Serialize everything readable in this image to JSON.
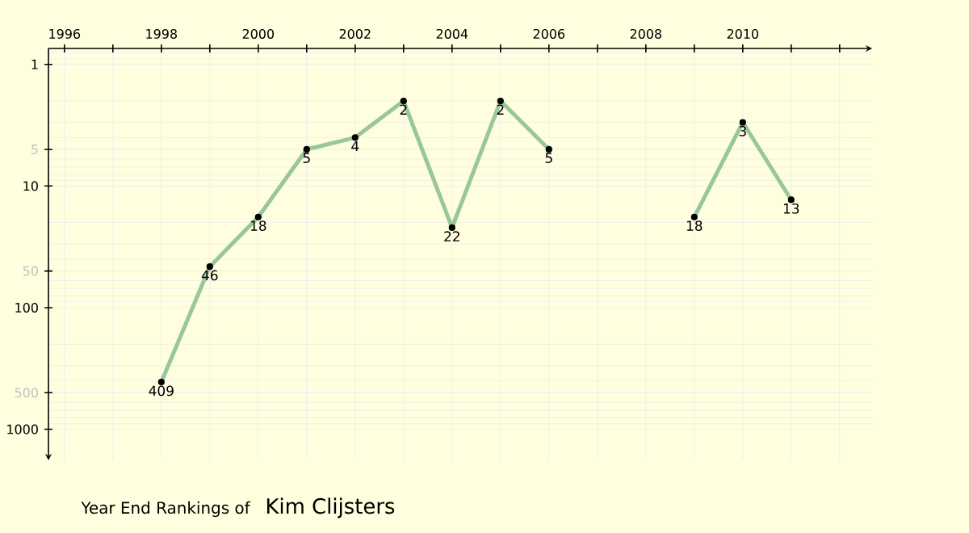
{
  "chart_data": {
    "type": "line",
    "title": "Year End Rankings of",
    "subtitle": "Kim Clijsters",
    "x": [
      1998,
      1999,
      2000,
      2001,
      2002,
      2003,
      2004,
      2005,
      2006,
      2007,
      2008,
      2009,
      2010,
      2011
    ],
    "series": [
      {
        "color": "#99c799",
        "values": [
          409,
          46,
          18,
          5,
          4,
          2,
          22,
          2,
          5,
          null,
          null,
          18,
          3,
          13
        ]
      }
    ],
    "log": "y",
    "ylim": [
      1800,
      0.74
    ],
    "yticks": [
      1,
      5,
      10,
      50,
      100,
      500,
      1000
    ],
    "xlim": [
      1995.67,
      2012.67
    ],
    "xticks": [
      1996,
      {
        "value": 1997,
        "label": null
      },
      1998,
      {
        "value": 1999,
        "label": null
      },
      2000,
      {
        "value": 2001,
        "label": null
      },
      2002,
      {
        "value": 2003,
        "label": null
      },
      2004,
      {
        "value": 2005,
        "label": null
      },
      2006,
      {
        "value": 2007,
        "label": null
      },
      2008,
      {
        "value": 2009,
        "label": null
      },
      2010,
      {
        "value": 2011,
        "label": null
      },
      {
        "value": 2012,
        "label": null
      }
    ],
    "grid": true,
    "marker": "circle",
    "line_style": "solid",
    "data_labels": true
  }
}
